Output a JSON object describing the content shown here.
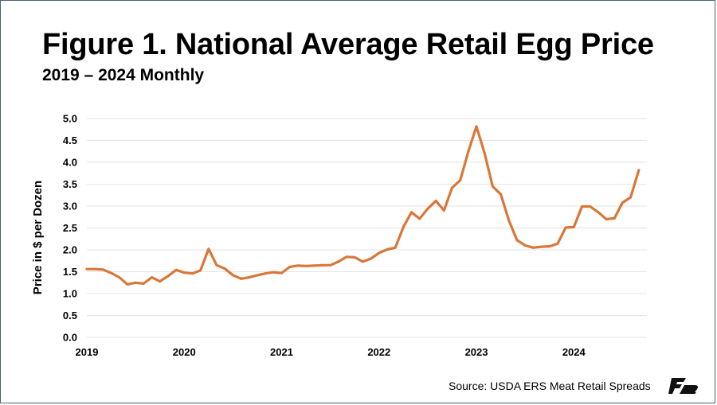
{
  "header": {
    "title": "Figure 1. National Average Retail Egg Price",
    "subtitle": "2019 – 2024 Monthly"
  },
  "footer": {
    "source": "Source: USDA ERS Meat Retail Spreads",
    "logo_icon": "farm-bureau-logo-icon"
  },
  "colors": {
    "line": "#d9773a",
    "grid": "#e3e3e3",
    "frame": "#4a6278",
    "logo": "#111111"
  },
  "chart_data": {
    "type": "line",
    "title": "Figure 1. National Average Retail Egg Price",
    "subtitle": "2019 – 2024 Monthly",
    "ylabel": "Price in $ per Dozen",
    "xlabel": "",
    "ylim": [
      0,
      5
    ],
    "yticks": [
      "0.0",
      "0.5",
      "1.0",
      "1.5",
      "2.0",
      "2.5",
      "3.0",
      "3.5",
      "4.0",
      "4.5",
      "5.0"
    ],
    "xticks": [
      "2019",
      "2020",
      "2021",
      "2022",
      "2023",
      "2024"
    ],
    "grid": "horizontal",
    "legend": "none",
    "series": [
      {
        "values": [
          1.56,
          1.56,
          1.55,
          1.47,
          1.37,
          1.21,
          1.25,
          1.23,
          1.37,
          1.28,
          1.4,
          1.54,
          1.48,
          1.46,
          1.53,
          2.02,
          1.65,
          1.57,
          1.42,
          1.34,
          1.37,
          1.42,
          1.46,
          1.49,
          1.47,
          1.61,
          1.64,
          1.63,
          1.64,
          1.65,
          1.65,
          1.73,
          1.84,
          1.83,
          1.73,
          1.8,
          1.93,
          2.01,
          2.05,
          2.52,
          2.86,
          2.71,
          2.94,
          3.12,
          2.9,
          3.42,
          3.59,
          4.25,
          4.82,
          4.21,
          3.45,
          3.27,
          2.67,
          2.22,
          2.1,
          2.05,
          2.07,
          2.08,
          2.14,
          2.51,
          2.52,
          2.99,
          2.99,
          2.86,
          2.7,
          2.72,
          3.08,
          3.2,
          3.82
        ]
      }
    ]
  }
}
